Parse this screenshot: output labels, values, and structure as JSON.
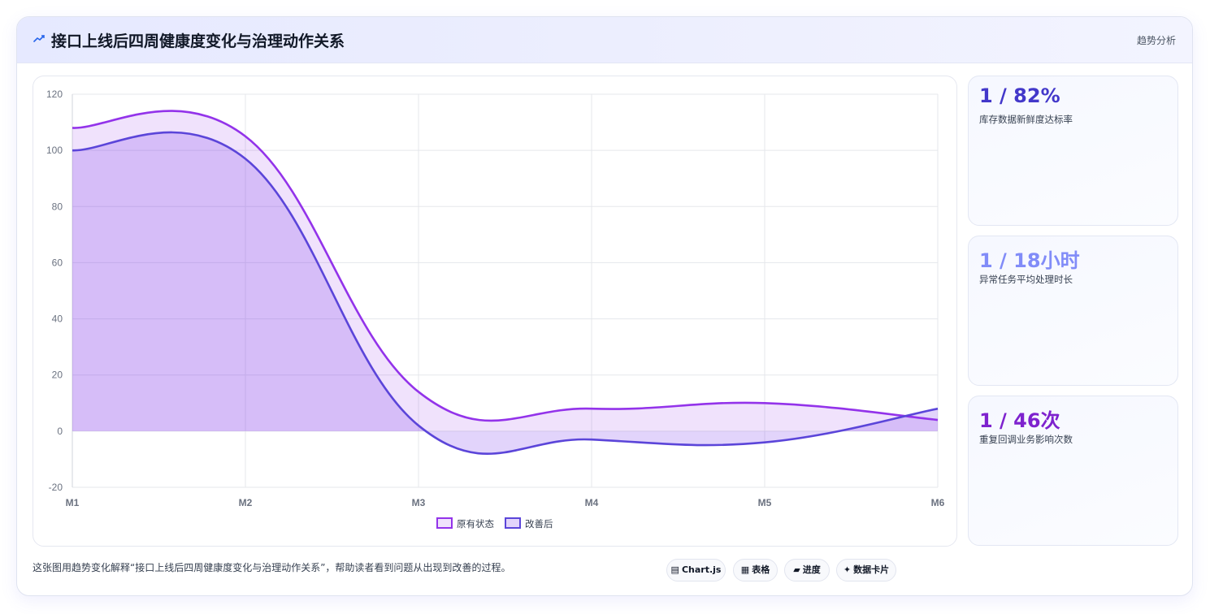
{
  "header": {
    "icon": "trend-line-icon",
    "title": "接口上线后四周健康度变化与治理动作关系",
    "tag": "趋势分析"
  },
  "chart_data": {
    "type": "area",
    "categories": [
      "M1",
      "M2",
      "M3",
      "M4",
      "M5",
      "M6"
    ],
    "series": [
      {
        "name": "原有状态",
        "values": [
          108,
          105,
          14,
          8,
          10,
          4
        ],
        "color": "#9333ea",
        "fill": "rgba(147,51,234,0.14)"
      },
      {
        "name": "改善后",
        "values": [
          100,
          97,
          2,
          -3,
          -4,
          8
        ],
        "color": "#5b45d9",
        "fill": "rgba(124,58,237,0.22)"
      }
    ],
    "ylim": [
      -20,
      120
    ],
    "yticks": [
      -20,
      0,
      20,
      40,
      60,
      80,
      100,
      120
    ],
    "grid": true,
    "legend_position": "bottom",
    "xlabel": "",
    "ylabel": ""
  },
  "kpis": [
    {
      "value": "1 / 82%",
      "label": "库存数据新鲜度达标率",
      "color": "#4338ca"
    },
    {
      "value": "1 / 18小时",
      "label": "异常任务平均处理时长",
      "color": "#818cf8"
    },
    {
      "value": "1 / 46次",
      "label": "重复回调业务影响次数",
      "color": "#7e22ce"
    }
  ],
  "footer": {
    "description": "这张图用趋势变化解释“接口上线后四周健康度变化与治理动作关系”，帮助读者看到问题从出现到改善的过程。",
    "chips": [
      {
        "icon": "chart-icon",
        "glyph": "▤",
        "label": "Chart.js"
      },
      {
        "icon": "table-icon",
        "glyph": "▦",
        "label": "表格"
      },
      {
        "icon": "progress-icon",
        "glyph": "▰",
        "label": "进度"
      },
      {
        "icon": "card-icon",
        "glyph": "✦",
        "label": "数据卡片"
      }
    ]
  }
}
